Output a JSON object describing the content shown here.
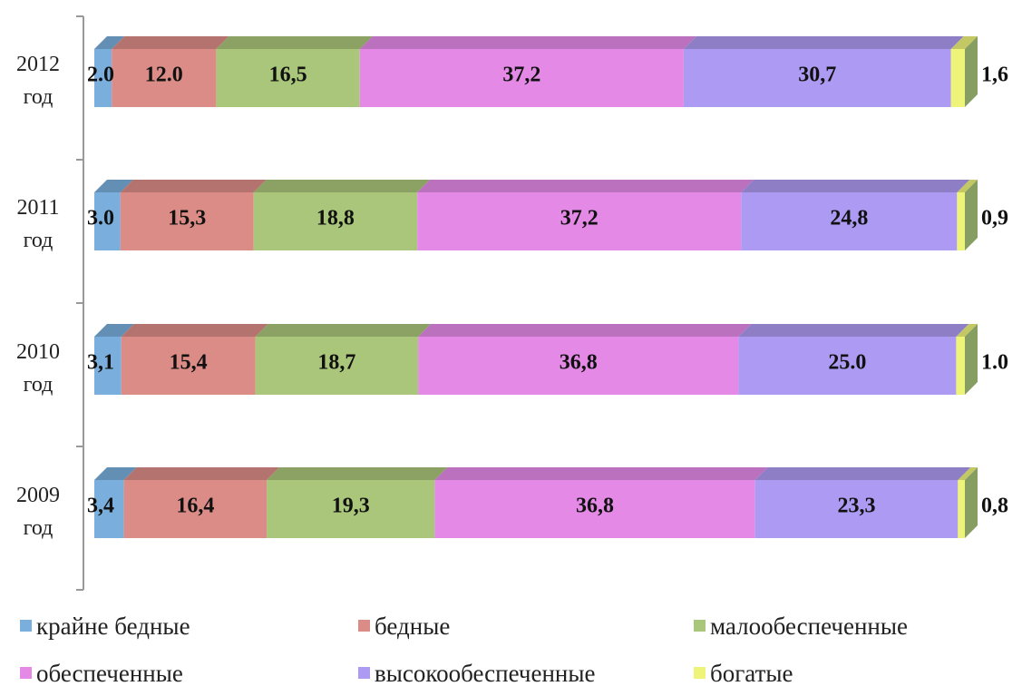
{
  "chart_data": {
    "type": "bar",
    "orientation": "horizontal",
    "stacked": true,
    "percent_stacked": true,
    "three_d": true,
    "title": "",
    "xlabel": "",
    "ylabel": "",
    "xlim": [
      0,
      100
    ],
    "grid": false,
    "legend_position": "bottom",
    "categories": [
      {
        "line1": "2012",
        "line2": "год"
      },
      {
        "line1": "2011",
        "line2": "год"
      },
      {
        "line1": "2010",
        "line2": "год"
      },
      {
        "line1": "2009",
        "line2": "год"
      }
    ],
    "series": [
      {
        "name": "крайне бедные",
        "color": "#7aaedc",
        "values": [
          2.0,
          3.0,
          3.1,
          3.4
        ],
        "labels": [
          "2.0",
          "3.0",
          "3,1",
          "3,4"
        ]
      },
      {
        "name": "бедные",
        "color": "#dc8c86",
        "values": [
          12.0,
          15.3,
          15.4,
          16.4
        ],
        "labels": [
          "12.0",
          "15,3",
          "15,4",
          "16,4"
        ]
      },
      {
        "name": "малообеспеченные",
        "color": "#a9c67a",
        "values": [
          16.5,
          18.8,
          18.7,
          19.3
        ],
        "labels": [
          "16,5",
          "18,8",
          "18,7",
          "19,3"
        ]
      },
      {
        "name": "обеспеченные",
        "color": "#e48ae6",
        "values": [
          37.2,
          37.2,
          36.8,
          36.8
        ],
        "labels": [
          "37,2",
          "37,2",
          "36,8",
          "36,8"
        ]
      },
      {
        "name": "высокообеспеченные",
        "color": "#ad9af2",
        "values": [
          30.7,
          24.8,
          25.0,
          23.3
        ],
        "labels": [
          "30,7",
          "24,8",
          "25.0",
          "23,3"
        ]
      },
      {
        "name": "богатые",
        "color": "#eef47a",
        "values": [
          1.6,
          0.9,
          1.0,
          0.8
        ],
        "labels": [
          "1,6",
          "0,9",
          "1.0",
          "0,8"
        ]
      }
    ]
  }
}
